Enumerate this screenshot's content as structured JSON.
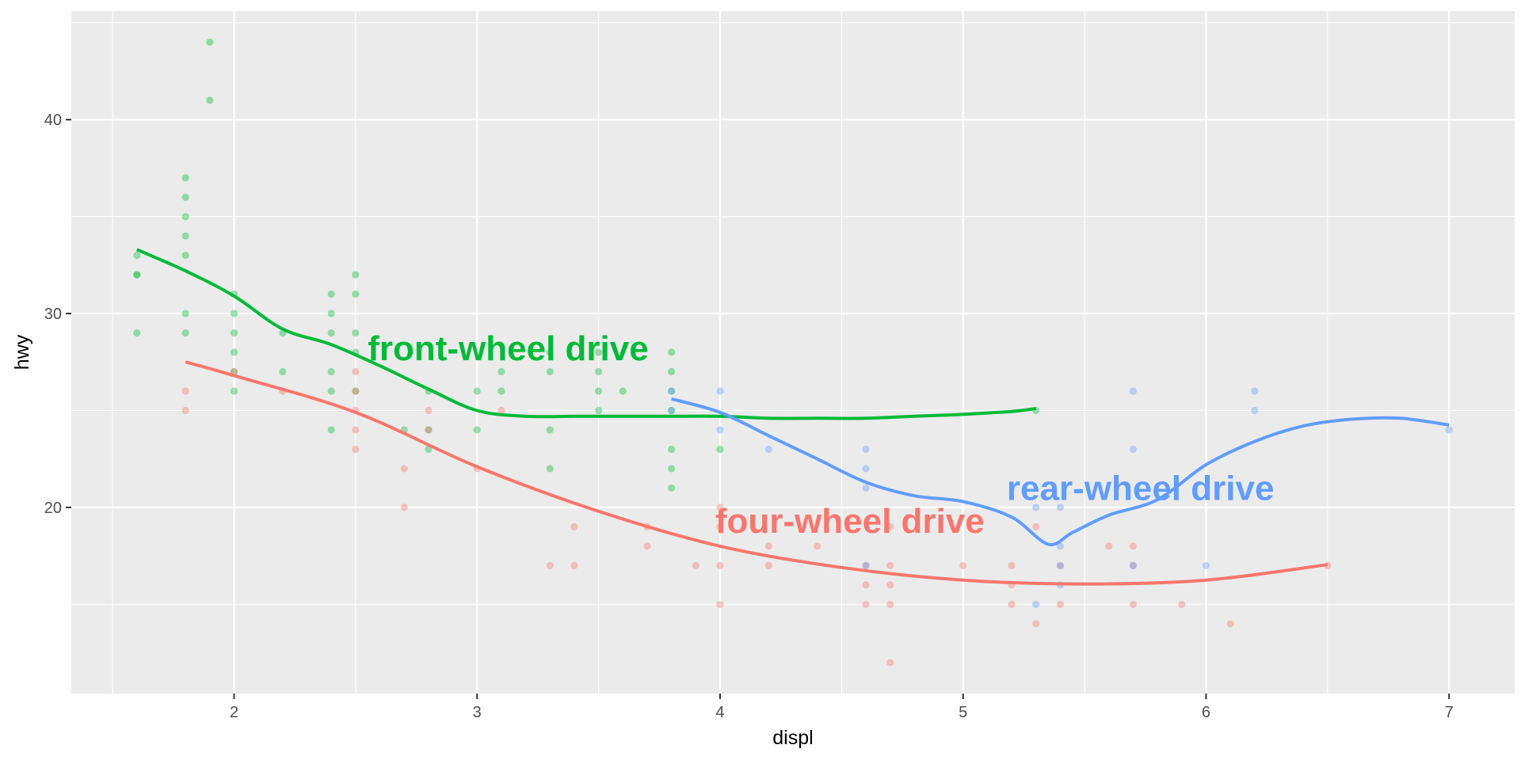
{
  "chart_data": {
    "type": "scatter",
    "title": "",
    "xlabel": "displ",
    "ylabel": "hwy",
    "xlim": [
      1.33,
      7.27
    ],
    "ylim": [
      10.4,
      45.6
    ],
    "x_ticks": [
      2,
      3,
      4,
      5,
      6,
      7
    ],
    "y_ticks": [
      20,
      30,
      40
    ],
    "grid": true,
    "legend": "none",
    "colors": {
      "panel": "#EBEBEB",
      "grid": "#FFFFFF",
      "tick": "#333333"
    },
    "series": [
      {
        "key": "f",
        "color": "#00BA38",
        "points": [
          [
            1.6,
            33
          ],
          [
            1.6,
            32
          ],
          [
            1.6,
            32
          ],
          [
            1.6,
            29
          ],
          [
            1.8,
            37
          ],
          [
            1.8,
            36
          ],
          [
            1.8,
            35
          ],
          [
            1.8,
            34
          ],
          [
            1.8,
            33
          ],
          [
            1.8,
            30
          ],
          [
            1.8,
            29
          ],
          [
            1.9,
            44
          ],
          [
            1.9,
            41
          ],
          [
            2.0,
            31
          ],
          [
            2.0,
            30
          ],
          [
            2.0,
            29
          ],
          [
            2.0,
            28
          ],
          [
            2.0,
            27
          ],
          [
            2.0,
            26
          ],
          [
            2.2,
            29
          ],
          [
            2.2,
            27
          ],
          [
            2.4,
            31
          ],
          [
            2.4,
            30
          ],
          [
            2.4,
            29
          ],
          [
            2.4,
            27
          ],
          [
            2.4,
            26
          ],
          [
            2.4,
            24
          ],
          [
            2.5,
            32
          ],
          [
            2.5,
            31
          ],
          [
            2.5,
            29
          ],
          [
            2.5,
            28
          ],
          [
            2.5,
            26
          ],
          [
            2.7,
            24
          ],
          [
            2.8,
            26
          ],
          [
            2.8,
            24
          ],
          [
            2.8,
            23
          ],
          [
            3.0,
            26
          ],
          [
            3.0,
            24
          ],
          [
            3.1,
            27
          ],
          [
            3.1,
            26
          ],
          [
            3.3,
            28
          ],
          [
            3.3,
            27
          ],
          [
            3.3,
            24
          ],
          [
            3.3,
            22
          ],
          [
            3.5,
            28
          ],
          [
            3.5,
            27
          ],
          [
            3.5,
            26
          ],
          [
            3.5,
            25
          ],
          [
            3.6,
            26
          ],
          [
            3.8,
            28
          ],
          [
            3.8,
            27
          ],
          [
            3.8,
            26
          ],
          [
            3.8,
            25
          ],
          [
            3.8,
            23
          ],
          [
            3.8,
            22
          ],
          [
            3.8,
            21
          ],
          [
            4.0,
            23
          ],
          [
            5.3,
            25
          ]
        ],
        "smooth": [
          [
            1.6,
            33.3
          ],
          [
            1.8,
            32.2
          ],
          [
            2.0,
            30.9
          ],
          [
            2.2,
            29.2
          ],
          [
            2.4,
            28.4
          ],
          [
            2.6,
            27.3
          ],
          [
            2.8,
            26.1
          ],
          [
            3.0,
            25.0
          ],
          [
            3.2,
            24.7
          ],
          [
            3.4,
            24.7
          ],
          [
            3.6,
            24.7
          ],
          [
            3.8,
            24.7
          ],
          [
            4.0,
            24.7
          ],
          [
            4.2,
            24.6
          ],
          [
            4.4,
            24.6
          ],
          [
            4.6,
            24.6
          ],
          [
            4.8,
            24.7
          ],
          [
            5.0,
            24.8
          ],
          [
            5.2,
            24.95
          ],
          [
            5.3,
            25.1
          ]
        ]
      },
      {
        "key": "4",
        "color": "#F8766D",
        "points": [
          [
            1.8,
            26
          ],
          [
            1.8,
            25
          ],
          [
            2.0,
            27
          ],
          [
            2.2,
            26
          ],
          [
            2.5,
            27
          ],
          [
            2.5,
            26
          ],
          [
            2.5,
            25
          ],
          [
            2.5,
            24
          ],
          [
            2.5,
            23
          ],
          [
            2.7,
            22
          ],
          [
            2.7,
            20
          ],
          [
            2.8,
            25
          ],
          [
            2.8,
            24
          ],
          [
            3.0,
            22
          ],
          [
            3.1,
            25
          ],
          [
            3.3,
            17
          ],
          [
            3.4,
            19
          ],
          [
            3.4,
            17
          ],
          [
            3.7,
            19
          ],
          [
            3.7,
            18
          ],
          [
            3.9,
            17
          ],
          [
            4.0,
            20
          ],
          [
            4.0,
            19
          ],
          [
            4.0,
            17
          ],
          [
            4.0,
            15
          ],
          [
            4.2,
            18
          ],
          [
            4.2,
            17
          ],
          [
            4.4,
            18
          ],
          [
            4.6,
            17
          ],
          [
            4.6,
            16
          ],
          [
            4.6,
            15
          ],
          [
            4.7,
            19
          ],
          [
            4.7,
            17
          ],
          [
            4.7,
            16
          ],
          [
            4.7,
            15
          ],
          [
            4.7,
            12
          ],
          [
            5.0,
            17
          ],
          [
            5.2,
            17
          ],
          [
            5.2,
            16
          ],
          [
            5.2,
            15
          ],
          [
            5.3,
            19
          ],
          [
            5.3,
            14
          ],
          [
            5.4,
            17
          ],
          [
            5.4,
            15
          ],
          [
            5.6,
            18
          ],
          [
            5.7,
            18
          ],
          [
            5.7,
            17
          ],
          [
            5.7,
            15
          ],
          [
            5.9,
            15
          ],
          [
            6.1,
            14
          ],
          [
            6.5,
            17
          ]
        ],
        "smooth": [
          [
            1.8,
            27.5
          ],
          [
            2.0,
            26.8
          ],
          [
            2.5,
            24.9
          ],
          [
            3.0,
            22.1
          ],
          [
            3.5,
            19.8
          ],
          [
            4.0,
            18.0
          ],
          [
            4.5,
            16.9
          ],
          [
            5.0,
            16.25
          ],
          [
            5.5,
            16.05
          ],
          [
            6.0,
            16.25
          ],
          [
            6.5,
            17.05
          ]
        ]
      },
      {
        "key": "r",
        "color": "#619CFF",
        "points": [
          [
            3.8,
            26
          ],
          [
            3.8,
            25
          ],
          [
            4.0,
            26
          ],
          [
            4.0,
            24
          ],
          [
            4.2,
            23
          ],
          [
            4.6,
            23
          ],
          [
            4.6,
            22
          ],
          [
            4.6,
            21
          ],
          [
            4.6,
            17
          ],
          [
            5.3,
            20
          ],
          [
            5.3,
            15
          ],
          [
            5.4,
            20
          ],
          [
            5.4,
            18
          ],
          [
            5.4,
            17
          ],
          [
            5.4,
            16
          ],
          [
            5.7,
            26
          ],
          [
            5.7,
            23
          ],
          [
            5.7,
            17
          ],
          [
            6.0,
            17
          ],
          [
            6.2,
            26
          ],
          [
            6.2,
            25
          ],
          [
            7.0,
            24
          ]
        ],
        "smooth": [
          [
            3.8,
            25.6
          ],
          [
            4.0,
            24.9
          ],
          [
            4.2,
            23.7
          ],
          [
            4.4,
            22.5
          ],
          [
            4.6,
            21.3
          ],
          [
            4.8,
            20.6
          ],
          [
            5.0,
            20.3
          ],
          [
            5.2,
            19.5
          ],
          [
            5.35,
            18.1
          ],
          [
            5.45,
            18.7
          ],
          [
            5.6,
            19.6
          ],
          [
            5.8,
            20.4
          ],
          [
            6.0,
            22.2
          ],
          [
            6.2,
            23.4
          ],
          [
            6.4,
            24.2
          ],
          [
            6.6,
            24.55
          ],
          [
            6.8,
            24.6
          ],
          [
            7.0,
            24.25
          ]
        ]
      }
    ],
    "annotations": [
      {
        "text": "front-wheel drive",
        "x": 2.55,
        "y": 28.2,
        "color": "#00BA38"
      },
      {
        "text": "rear-wheel drive",
        "x": 5.18,
        "y": 21.0,
        "color": "#619CFF"
      },
      {
        "text": "four-wheel drive",
        "x": 3.98,
        "y": 19.3,
        "color": "#F8766D"
      }
    ]
  }
}
